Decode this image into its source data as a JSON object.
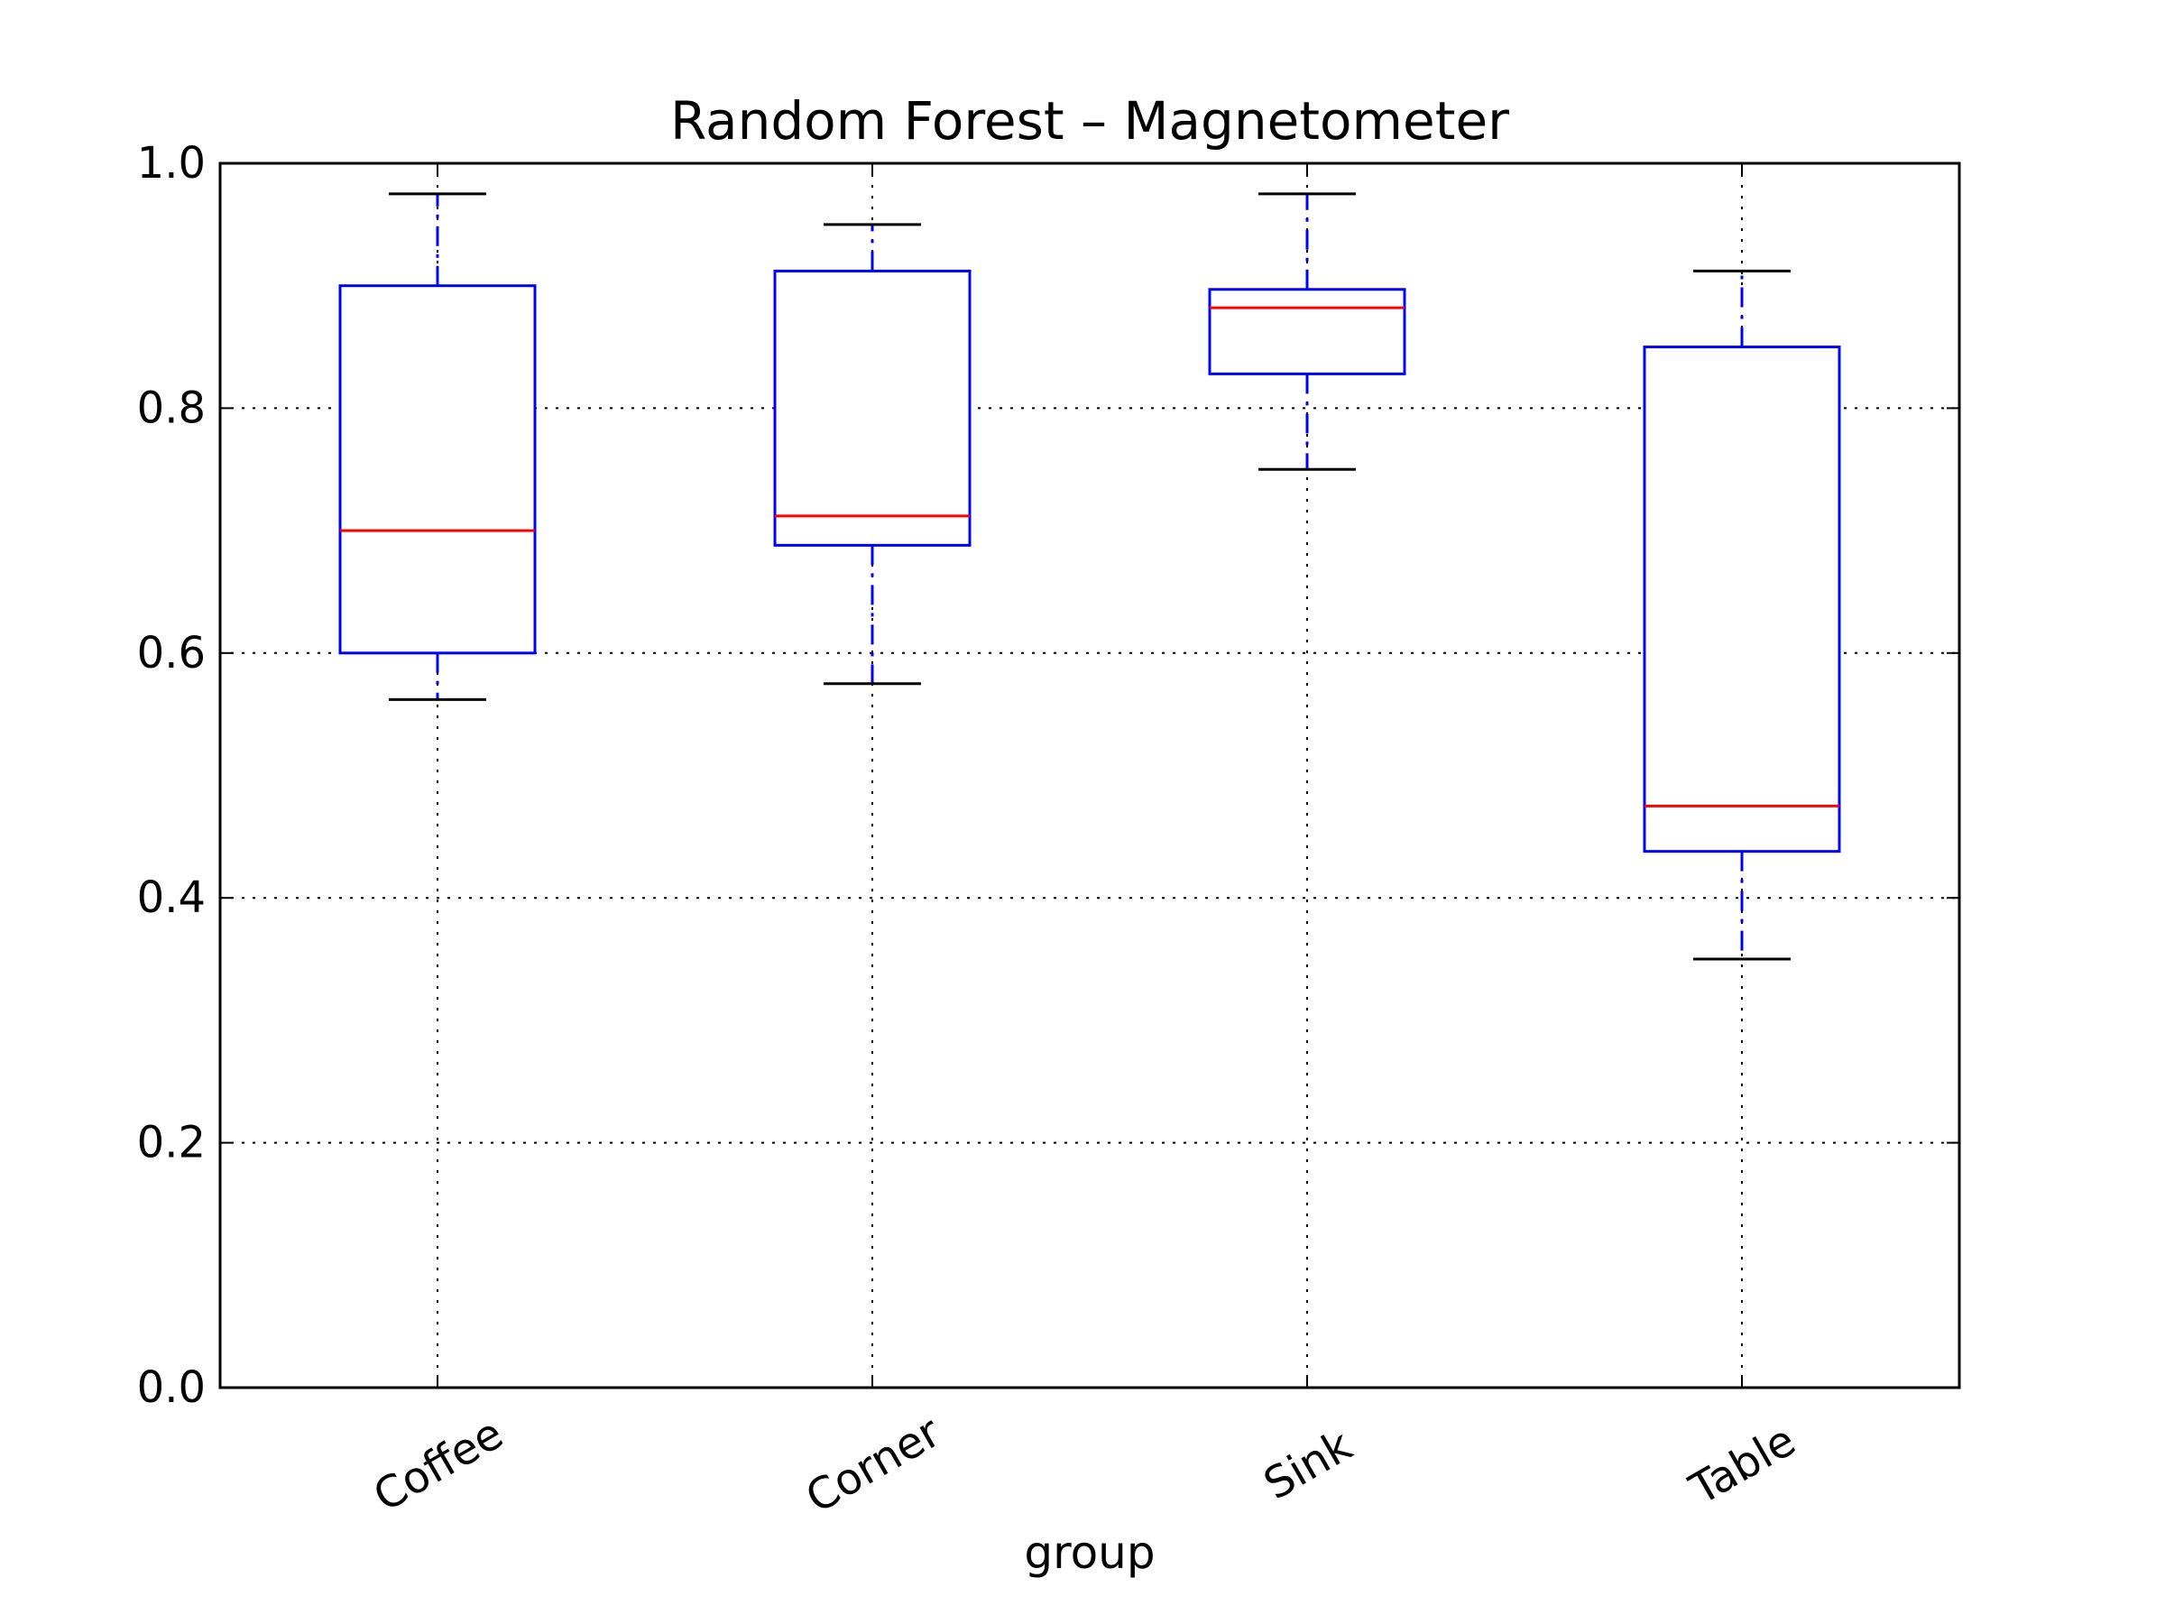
{
  "chart_data": {
    "type": "box",
    "title": "Random Forest – Magnetometer",
    "xlabel": "group",
    "ylabel": "",
    "ylim": [
      0.0,
      1.0
    ],
    "yticks": [
      "0.0",
      "0.2",
      "0.4",
      "0.6",
      "0.8",
      "1.0"
    ],
    "grid": true,
    "categories": [
      "Coffee",
      "Corner",
      "Sink",
      "Table"
    ],
    "boxes": [
      {
        "category": "Coffee",
        "whisker_low": 0.562,
        "q1": 0.6,
        "median": 0.7,
        "q3": 0.9,
        "whisker_high": 0.975
      },
      {
        "category": "Corner",
        "whisker_low": 0.575,
        "q1": 0.688,
        "median": 0.712,
        "q3": 0.912,
        "whisker_high": 0.95
      },
      {
        "category": "Sink",
        "whisker_low": 0.75,
        "q1": 0.828,
        "median": 0.882,
        "q3": 0.897,
        "whisker_high": 0.975
      },
      {
        "category": "Table",
        "whisker_low": 0.35,
        "q1": 0.438,
        "median": 0.475,
        "q3": 0.85,
        "whisker_high": 0.912
      }
    ],
    "colors": {
      "box": "#0000ff",
      "whisker": "#0000ff",
      "cap": "#000000",
      "median": "#ff0000",
      "grid": "#000000",
      "frame": "#000000"
    }
  }
}
